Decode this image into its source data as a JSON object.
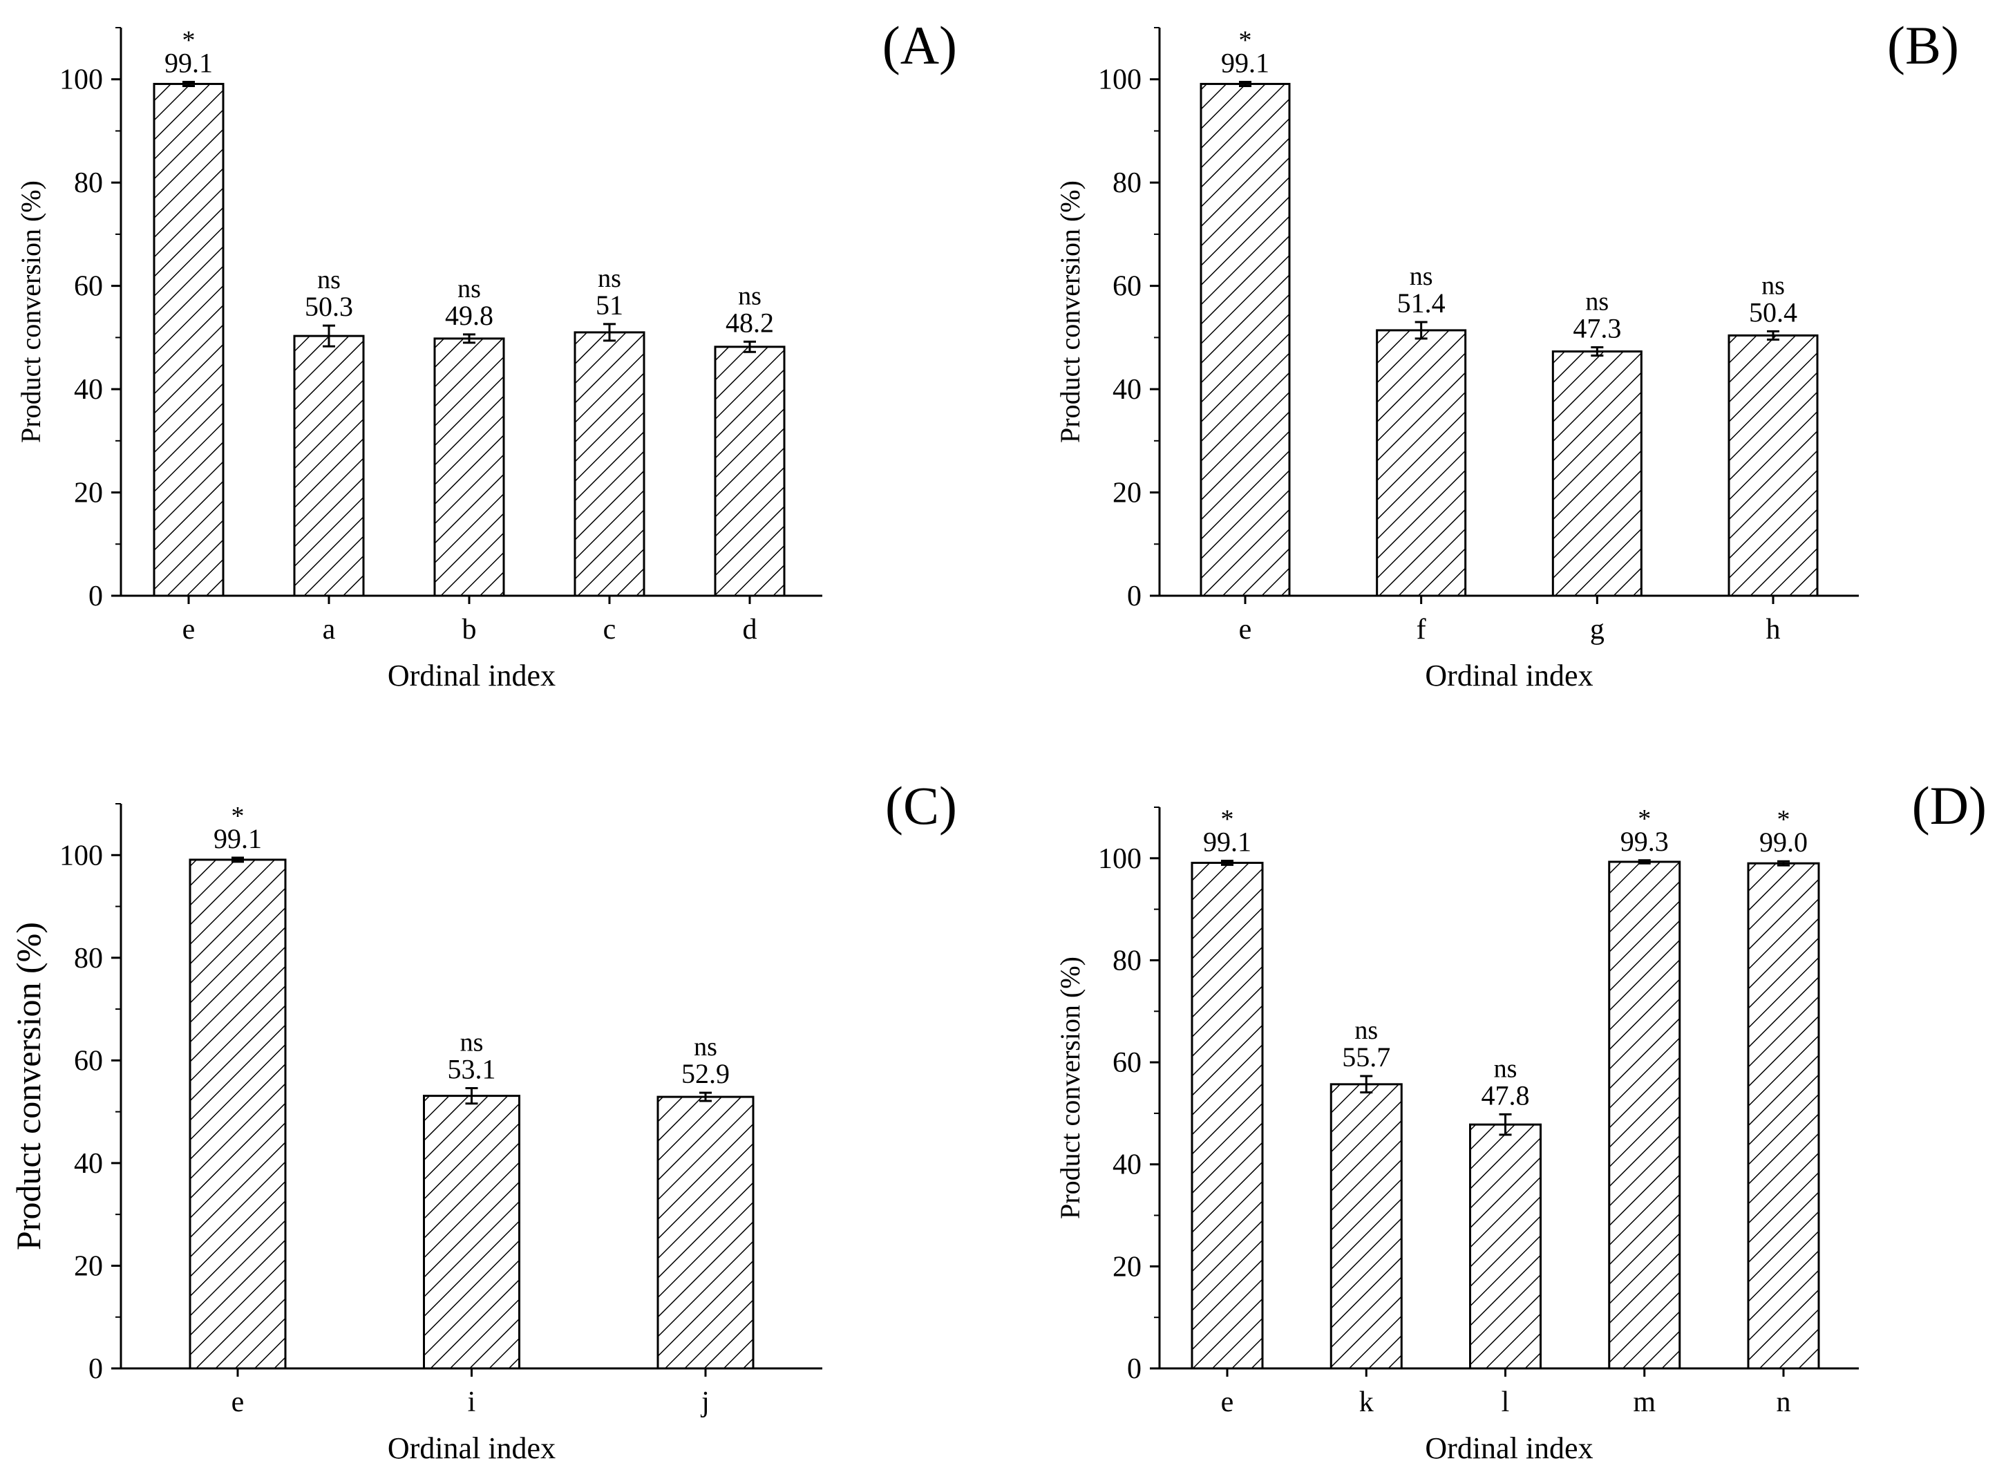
{
  "chart_data": [
    {
      "type": "bar",
      "panel_label": "(A)",
      "xlabel": "Ordinal index",
      "ylabel": "Product conversion (%)",
      "ylim": [
        0,
        110
      ],
      "yticks": [
        0,
        20,
        40,
        60,
        80,
        100
      ],
      "categories": [
        "e",
        "a",
        "b",
        "c",
        "d"
      ],
      "values": [
        99.1,
        50.3,
        49.8,
        51.0,
        48.2
      ],
      "errors": [
        0.4,
        2.0,
        0.8,
        1.6,
        1.0
      ],
      "value_labels": [
        "99.1",
        "50.3",
        "49.8",
        "51",
        "48.2"
      ],
      "significance": [
        "*",
        "ns",
        "ns",
        "ns",
        "ns"
      ],
      "pattern": "diagonal-hatch"
    },
    {
      "type": "bar",
      "panel_label": "(B)",
      "xlabel": "Ordinal index",
      "ylabel": "Product conversion (%)",
      "ylim": [
        0,
        110
      ],
      "yticks": [
        0,
        20,
        40,
        60,
        80,
        100
      ],
      "categories": [
        "e",
        "f",
        "g",
        "h"
      ],
      "values": [
        99.1,
        51.4,
        47.3,
        50.4
      ],
      "errors": [
        0.4,
        1.6,
        0.8,
        0.8
      ],
      "value_labels": [
        "99.1",
        "51.4",
        "47.3",
        "50.4"
      ],
      "significance": [
        "*",
        "ns",
        "ns",
        "ns"
      ],
      "pattern": "diagonal-hatch"
    },
    {
      "type": "bar",
      "panel_label": "(C)",
      "xlabel": "Ordinal index",
      "ylabel": "Product conversion (%)",
      "ylim": [
        0,
        110
      ],
      "yticks": [
        0,
        20,
        40,
        60,
        80,
        100
      ],
      "categories": [
        "e",
        "i",
        "j"
      ],
      "values": [
        99.1,
        53.1,
        52.9
      ],
      "errors": [
        0.4,
        1.5,
        0.8
      ],
      "value_labels": [
        "99.1",
        "53.1",
        "52.9"
      ],
      "significance": [
        "*",
        "ns",
        "ns"
      ],
      "pattern": "diagonal-hatch"
    },
    {
      "type": "bar",
      "panel_label": "(D)",
      "xlabel": "Ordinal index",
      "ylabel": "Product conversion (%)",
      "ylim": [
        0,
        110
      ],
      "yticks": [
        0,
        20,
        40,
        60,
        80,
        100
      ],
      "categories": [
        "e",
        "k",
        "l",
        "m",
        "n"
      ],
      "values": [
        99.1,
        55.7,
        47.8,
        99.3,
        99.0
      ],
      "errors": [
        0.4,
        1.6,
        2.0,
        0.3,
        0.4
      ],
      "value_labels": [
        "99.1",
        "55.7",
        "47.8",
        "99.3",
        "99.0"
      ],
      "significance": [
        "*",
        "ns",
        "ns",
        "*",
        "*"
      ],
      "pattern": "diagonal-hatch"
    }
  ]
}
